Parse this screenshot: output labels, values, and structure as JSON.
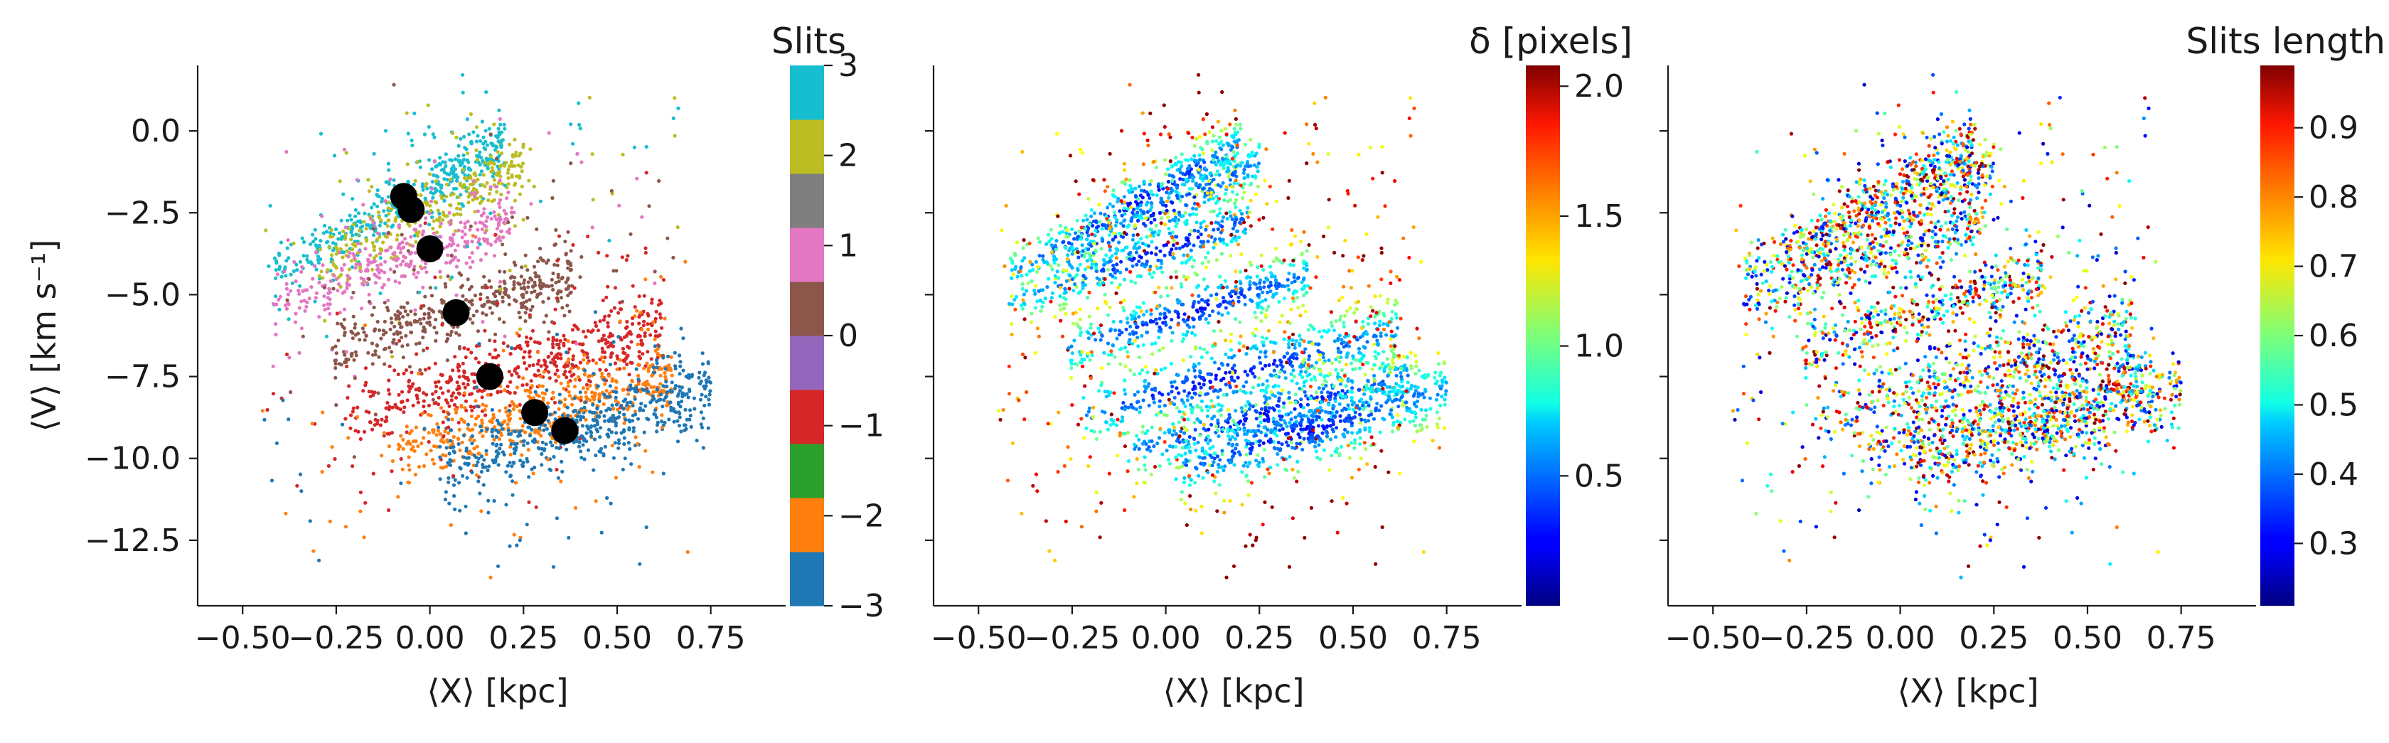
{
  "chart_data": [
    {
      "type": "scatter",
      "panel": "left",
      "xlabel": "⟨X⟩ [kpc]",
      "ylabel": "⟨V⟩ [km s⁻¹]",
      "xlim": [
        -0.62,
        0.95
      ],
      "ylim": [
        -14.5,
        2.0
      ],
      "xticks": [
        -0.5,
        -0.25,
        0.0,
        0.25,
        0.5,
        0.75
      ],
      "xtick_labels": [
        "−0.50",
        "−0.25",
        "0.00",
        "0.25",
        "0.50",
        "0.75"
      ],
      "yticks": [
        0.0,
        -2.5,
        -5.0,
        -7.5,
        -10.0,
        -12.5
      ],
      "ytick_labels": [
        "0.0",
        "−2.5",
        "−5.0",
        "−7.5",
        "−10.0",
        "−12.5"
      ],
      "colorbar": {
        "title": "Slits",
        "range": [
          -3,
          3
        ],
        "ticks": [
          3,
          2,
          1,
          0,
          -1,
          -2,
          -3
        ],
        "tick_labels": [
          "3",
          "2",
          "1",
          "0",
          "−1",
          "−2",
          "−3"
        ],
        "colors": [
          "#1f77b4",
          "#ff7f0e",
          "#2ca02c",
          "#d62728",
          "#9467bd",
          "#8c564b",
          "#e377c2",
          "#7f7f7f",
          "#bcbd22",
          "#17becf"
        ]
      },
      "slit_bands": [
        {
          "slit": 3,
          "color": "#17becf",
          "x_range": [
            -0.42,
            0.2
          ],
          "center": [
            -0.08,
            -2.2
          ],
          "slope": 6.5,
          "spread": 0.38,
          "n": 420
        },
        {
          "slit": 2,
          "color": "#bcbd22",
          "x_range": [
            -0.3,
            0.25
          ],
          "center": [
            -0.03,
            -2.6
          ],
          "slope": 6.0,
          "spread": 0.45,
          "n": 300
        },
        {
          "slit": 1,
          "color": "#e377c2",
          "x_range": [
            -0.42,
            0.22
          ],
          "center": [
            0.0,
            -3.6
          ],
          "slope": 4.0,
          "spread": 0.4,
          "n": 340
        },
        {
          "slit": 0,
          "color": "#8c564b",
          "x_range": [
            -0.26,
            0.38
          ],
          "center": [
            0.07,
            -5.5
          ],
          "slope": 3.6,
          "spread": 0.45,
          "n": 420
        },
        {
          "slit": -1,
          "color": "#d62728",
          "x_range": [
            -0.22,
            0.62
          ],
          "center": [
            0.16,
            -7.5
          ],
          "slope": 3.0,
          "spread": 0.55,
          "n": 520
        },
        {
          "slit": -1.5,
          "color": "#ff7f0e",
          "x_range": [
            -0.1,
            0.65
          ],
          "center": [
            0.28,
            -8.6
          ],
          "slope": 3.2,
          "spread": 0.5,
          "n": 460
        },
        {
          "slit": -2,
          "color": "#1f77b4",
          "x_range": [
            0.02,
            0.75
          ],
          "center": [
            0.36,
            -9.2
          ],
          "slope": 3.4,
          "spread": 0.55,
          "n": 560
        }
      ],
      "centroids": [
        {
          "x": -0.07,
          "y": -2.0
        },
        {
          "x": -0.05,
          "y": -2.4
        },
        {
          "x": 0.0,
          "y": -3.6
        },
        {
          "x": 0.07,
          "y": -5.55
        },
        {
          "x": 0.16,
          "y": -7.5
        },
        {
          "x": 0.28,
          "y": -8.6
        },
        {
          "x": 0.36,
          "y": -9.15
        }
      ]
    },
    {
      "type": "scatter",
      "panel": "middle",
      "xlabel": "⟨X⟩ [kpc]",
      "xlim": [
        -0.62,
        0.95
      ],
      "ylim": [
        -14.5,
        2.0
      ],
      "xticks": [
        -0.5,
        -0.25,
        0.0,
        0.25,
        0.5,
        0.75
      ],
      "xtick_labels": [
        "−0.50",
        "−0.25",
        "0.00",
        "0.25",
        "0.50",
        "0.75"
      ],
      "colorbar": {
        "title": "δ [pixels]",
        "range": [
          0.0,
          2.08
        ],
        "colormap": "jet",
        "ticks": [
          2.0,
          1.5,
          1.0,
          0.5
        ],
        "tick_labels": [
          "2.0",
          "1.5",
          "1.0",
          "0.5"
        ]
      }
    },
    {
      "type": "scatter",
      "panel": "right",
      "xlabel": "⟨X⟩ [kpc]",
      "xlim": [
        -0.62,
        0.95
      ],
      "ylim": [
        -14.5,
        2.0
      ],
      "xticks": [
        -0.5,
        -0.25,
        0.0,
        0.25,
        0.5,
        0.75
      ],
      "xtick_labels": [
        "−0.50",
        "−0.25",
        "0.00",
        "0.25",
        "0.50",
        "0.75"
      ],
      "colorbar": {
        "title": "Slits length",
        "range": [
          0.21,
          0.99
        ],
        "colormap": "jet",
        "ticks": [
          0.9,
          0.8,
          0.7,
          0.6,
          0.5,
          0.4,
          0.3
        ],
        "tick_labels": [
          "0.9",
          "0.8",
          "0.7",
          "0.6",
          "0.5",
          "0.4",
          "0.3"
        ]
      }
    }
  ]
}
